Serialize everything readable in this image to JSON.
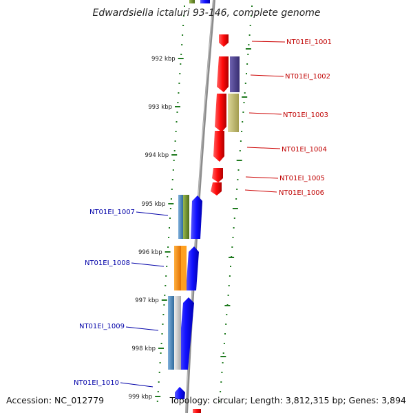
{
  "title": "Edwardsiella ictaluri 93-146, complete genome",
  "accession": "Accession: NC_012779",
  "topology": "Topology: circular; Length: 3,812,315 bp; Genes: 3,894",
  "colors": {
    "backbone": "#9a9a9a",
    "tick_green": "#1f7a1f",
    "forward_gene": "#1a1aff",
    "reverse_gene": "#ff1010",
    "label_red": "#c00000",
    "label_blue": "#0000a8",
    "cog_green": "#6b8e23",
    "cog_steel": "#4682b4",
    "cog_orange": "#ff8c00",
    "cog_purple": "#4b3f8c",
    "cog_khaki": "#bdb76b",
    "cog_gray": "#c8c8c8"
  },
  "ticks": [
    {
      "label": "992 kbp"
    },
    {
      "label": "993 kbp"
    },
    {
      "label": "994 kbp"
    },
    {
      "label": "995 kbp"
    },
    {
      "label": "996 kbp"
    },
    {
      "label": "997 kbp"
    },
    {
      "label": "998 kbp"
    },
    {
      "label": "999 kbp"
    }
  ],
  "reverse_genes": [
    {
      "label": "NT01EI_1001"
    },
    {
      "label": "NT01EI_1002"
    },
    {
      "label": "NT01EI_1003"
    },
    {
      "label": "NT01EI_1004"
    },
    {
      "label": "NT01EI_1005"
    },
    {
      "label": "NT01EI_1006"
    }
  ],
  "forward_genes": [
    {
      "label": "NT01EI_1007"
    },
    {
      "label": "NT01EI_1008"
    },
    {
      "label": "NT01EI_1009"
    },
    {
      "label": "NT01EI_1010"
    }
  ]
}
